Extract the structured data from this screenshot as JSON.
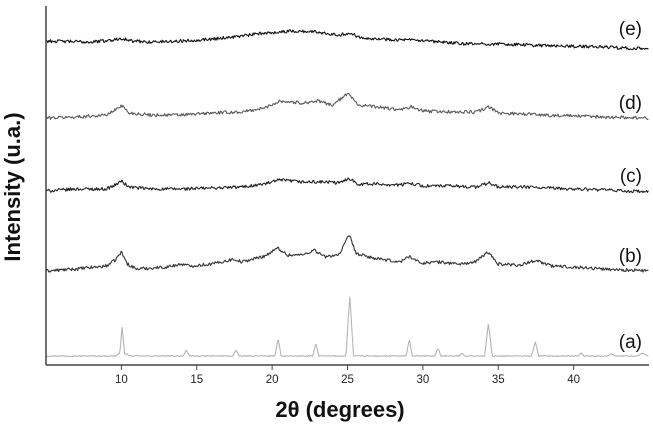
{
  "chart_data": {
    "type": "line",
    "title": "",
    "xlabel": "2θ (degrees)",
    "ylabel": "Intensity (u.a.)",
    "xlim": [
      5,
      45
    ],
    "xticks": [
      10,
      15,
      20,
      25,
      30,
      35,
      40
    ],
    "y_tick_labels": false,
    "grid": false,
    "legend": "none",
    "series": [
      {
        "name": "(a)",
        "color": "#b4b4b4",
        "points": [
          [
            5,
            0
          ],
          [
            9.6,
            0
          ],
          [
            9.9,
            3
          ],
          [
            10.05,
            30
          ],
          [
            10.2,
            3
          ],
          [
            10.6,
            0
          ],
          [
            14.1,
            0
          ],
          [
            14.3,
            6
          ],
          [
            14.5,
            0
          ],
          [
            17.4,
            0
          ],
          [
            17.6,
            6
          ],
          [
            17.8,
            0
          ],
          [
            20.2,
            0
          ],
          [
            20.4,
            18
          ],
          [
            20.6,
            0
          ],
          [
            22.7,
            0
          ],
          [
            22.9,
            13
          ],
          [
            23.1,
            0
          ],
          [
            24.9,
            0
          ],
          [
            25.15,
            61
          ],
          [
            25.4,
            0
          ],
          [
            28.9,
            0
          ],
          [
            29.1,
            17
          ],
          [
            29.3,
            0
          ],
          [
            30.8,
            0
          ],
          [
            31.0,
            8
          ],
          [
            31.2,
            0
          ],
          [
            32.4,
            0
          ],
          [
            32.6,
            3
          ],
          [
            32.8,
            0
          ],
          [
            34.1,
            0
          ],
          [
            34.35,
            33
          ],
          [
            34.6,
            0
          ],
          [
            37.2,
            0
          ],
          [
            37.45,
            14
          ],
          [
            37.7,
            0
          ],
          [
            40.3,
            0
          ],
          [
            40.5,
            3
          ],
          [
            40.7,
            0
          ],
          [
            42.2,
            0
          ],
          [
            42.5,
            2
          ],
          [
            42.8,
            0
          ],
          [
            44.3,
            0
          ],
          [
            44.5,
            3
          ],
          [
            45,
            0
          ]
        ]
      },
      {
        "name": "(b)",
        "color": "#333333",
        "points": [
          [
            5,
            -1
          ],
          [
            7,
            1
          ],
          [
            9,
            4
          ],
          [
            9.6,
            10
          ],
          [
            10,
            18
          ],
          [
            10.4,
            6
          ],
          [
            11,
            1
          ],
          [
            13,
            3
          ],
          [
            14,
            6
          ],
          [
            14.5,
            4
          ],
          [
            16,
            6
          ],
          [
            17.5,
            11
          ],
          [
            18,
            8
          ],
          [
            19.5,
            14
          ],
          [
            20.4,
            22
          ],
          [
            21,
            15
          ],
          [
            22,
            15
          ],
          [
            22.8,
            20
          ],
          [
            23.5,
            13
          ],
          [
            24.5,
            16
          ],
          [
            25.1,
            35
          ],
          [
            25.6,
            16
          ],
          [
            27,
            11
          ],
          [
            28.5,
            8
          ],
          [
            29.1,
            14
          ],
          [
            29.8,
            7
          ],
          [
            31,
            8
          ],
          [
            32.5,
            6
          ],
          [
            33.5,
            8
          ],
          [
            34.3,
            18
          ],
          [
            35,
            6
          ],
          [
            36.5,
            5
          ],
          [
            37.5,
            10
          ],
          [
            38.5,
            4
          ],
          [
            40,
            3
          ],
          [
            42,
            1
          ],
          [
            45,
            -1
          ]
        ]
      },
      {
        "name": "(c)",
        "color": "#222222",
        "points": [
          [
            5,
            -1
          ],
          [
            7,
            1
          ],
          [
            9,
            1
          ],
          [
            9.6,
            5
          ],
          [
            10,
            9
          ],
          [
            10.5,
            3
          ],
          [
            12,
            1
          ],
          [
            14,
            1
          ],
          [
            16,
            2
          ],
          [
            18,
            3
          ],
          [
            19.5,
            6
          ],
          [
            20.5,
            10
          ],
          [
            22,
            8
          ],
          [
            23.5,
            8
          ],
          [
            24.5,
            7
          ],
          [
            25.1,
            12
          ],
          [
            25.7,
            6
          ],
          [
            27,
            6
          ],
          [
            28.5,
            5
          ],
          [
            29.2,
            7
          ],
          [
            30,
            4
          ],
          [
            32,
            4
          ],
          [
            33.5,
            3
          ],
          [
            34.4,
            7
          ],
          [
            35,
            3
          ],
          [
            37,
            3
          ],
          [
            38,
            2
          ],
          [
            40,
            1
          ],
          [
            42,
            0
          ],
          [
            45,
            -2
          ]
        ]
      },
      {
        "name": "(d)",
        "color": "#5a5a5a",
        "points": [
          [
            5,
            -1
          ],
          [
            7,
            0
          ],
          [
            9,
            2
          ],
          [
            9.6,
            7
          ],
          [
            10,
            12
          ],
          [
            10.5,
            4
          ],
          [
            12,
            2
          ],
          [
            14,
            2
          ],
          [
            16,
            4
          ],
          [
            18,
            5
          ],
          [
            19.5,
            9
          ],
          [
            20.5,
            16
          ],
          [
            22,
            14
          ],
          [
            23,
            16
          ],
          [
            24,
            12
          ],
          [
            25.1,
            24
          ],
          [
            25.7,
            12
          ],
          [
            27,
            10
          ],
          [
            28.5,
            7
          ],
          [
            29.2,
            10
          ],
          [
            30,
            6
          ],
          [
            32,
            5
          ],
          [
            33.5,
            5
          ],
          [
            34.4,
            10
          ],
          [
            35,
            4
          ],
          [
            37,
            3
          ],
          [
            38,
            2
          ],
          [
            40,
            1
          ],
          [
            42,
            0
          ],
          [
            45,
            -1
          ]
        ]
      },
      {
        "name": "(e)",
        "color": "#111111",
        "points": [
          [
            5,
            2
          ],
          [
            8,
            1
          ],
          [
            9.5,
            3
          ],
          [
            10,
            5
          ],
          [
            10.6,
            2
          ],
          [
            12,
            1
          ],
          [
            14,
            2
          ],
          [
            16,
            4
          ],
          [
            18,
            7
          ],
          [
            19.5,
            10
          ],
          [
            20.5,
            11
          ],
          [
            21.5,
            12
          ],
          [
            23,
            11
          ],
          [
            24.5,
            8
          ],
          [
            25.1,
            10
          ],
          [
            25.8,
            6
          ],
          [
            27,
            4
          ],
          [
            29,
            3
          ],
          [
            31,
            1
          ],
          [
            33,
            -1
          ],
          [
            35,
            -1
          ],
          [
            37,
            -2
          ],
          [
            39,
            -3
          ],
          [
            42,
            -4
          ],
          [
            45,
            -6
          ]
        ]
      }
    ]
  }
}
